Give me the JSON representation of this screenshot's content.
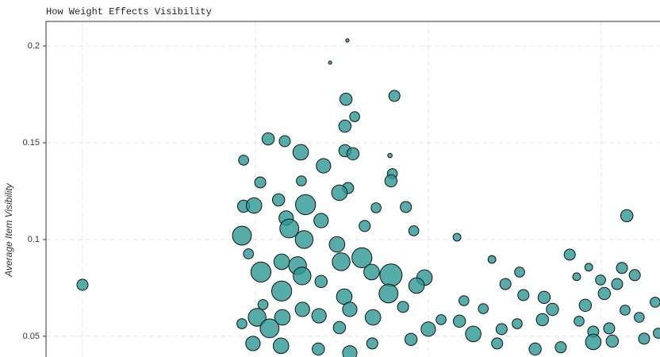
{
  "chart_data": {
    "type": "scatter",
    "title": "How Weight Effects Visibility",
    "ylabel": "Average Item Visibility",
    "color": "#2a9792",
    "grid": true,
    "xlim": [
      39.45,
      217.0
    ],
    "xticks": [
      50,
      100,
      150,
      200
    ],
    "ylim": [
      0.0393,
      0.2127
    ],
    "yticks": [
      0.2,
      0.15,
      0.1,
      0.05
    ],
    "x": [
      50.0,
      126.6,
      121.6,
      126.2,
      140.2,
      128.7,
      125.9,
      103.7,
      108.5,
      113.1,
      125.9,
      128.2,
      96.6,
      119.7,
      138.9,
      139.6,
      139.2,
      101.4,
      113.3,
      126.8,
      124.3,
      106.7,
      114.5,
      96.6,
      99.6,
      134.9,
      143.5,
      207.4,
      108.9,
      119.0,
      131.6,
      109.8,
      145.8,
      96.1,
      114.1,
      158.3,
      123.6,
      98.0,
      107.6,
      130.8,
      112.2,
      124.8,
      168.4,
      190.9,
      101.6,
      113.5,
      139.2,
      148.9,
      133.6,
      196.4,
      206.0,
      209.7,
      176.4,
      172.3,
      146.6,
      192.9,
      199.8,
      204.6,
      107.6,
      119.0,
      125.7,
      138.5,
      177.5,
      183.5,
      200.9,
      160.3,
      195.4,
      215.6,
      102.2,
      113.6,
      127.3,
      142.7,
      165.9,
      185.9,
      206.9,
      100.5,
      107.8,
      118.4,
      134.0,
      153.7,
      159.0,
      175.7,
      183.0,
      193.6,
      211.0,
      96.1,
      104.1,
      124.3,
      150.0,
      163.0,
      171.2,
      197.7,
      202.3,
      99.3,
      107.4,
      118.2,
      127.3,
      133.8,
      145.0,
      169.9,
      180.9,
      188.3,
      197.7,
      203.2,
      212.4,
      216.5
    ],
    "y": [
      0.0766,
      0.2029,
      0.1914,
      0.1725,
      0.1742,
      0.1635,
      0.1586,
      0.152,
      0.1508,
      0.1451,
      0.1459,
      0.1443,
      0.141,
      0.1381,
      0.1434,
      0.134,
      0.1303,
      0.1295,
      0.1303,
      0.1266,
      0.1242,
      0.1205,
      0.118,
      0.1172,
      0.1176,
      0.1164,
      0.1168,
      0.1123,
      0.1111,
      0.1098,
      0.107,
      0.1057,
      0.1045,
      0.102,
      0.1,
      0.1012,
      0.0975,
      0.0926,
      0.0885,
      0.0906,
      0.0865,
      0.0885,
      0.0897,
      0.0922,
      0.0832,
      0.0812,
      0.0816,
      0.0803,
      0.0832,
      0.0857,
      0.0853,
      0.0816,
      0.0832,
      0.077,
      0.0762,
      0.0808,
      0.0791,
      0.077,
      0.0734,
      0.0783,
      0.0705,
      0.0721,
      0.0713,
      0.0701,
      0.0721,
      0.0684,
      0.066,
      0.0676,
      0.0664,
      0.0639,
      0.0639,
      0.0652,
      0.0643,
      0.0639,
      0.0635,
      0.0598,
      0.0598,
      0.0606,
      0.0598,
      0.0586,
      0.0578,
      0.0565,
      0.0586,
      0.0578,
      0.0598,
      0.0565,
      0.0541,
      0.0545,
      0.0537,
      0.0512,
      0.0537,
      0.0524,
      0.0541,
      0.0463,
      0.0451,
      0.0434,
      0.0414,
      0.0463,
      0.0484,
      0.0463,
      0.0434,
      0.0443,
      0.0471,
      0.0475,
      0.0488,
      0.0516
    ],
    "size": [
      10,
      3,
      3,
      11,
      10,
      9,
      11,
      11,
      10,
      14,
      11,
      11,
      9,
      13,
      4,
      9,
      11,
      10,
      9,
      10,
      14,
      11,
      18,
      11,
      14,
      9,
      10,
      11,
      13,
      13,
      10,
      17,
      9,
      17,
      16,
      7,
      14,
      9,
      14,
      18,
      16,
      16,
      7,
      10,
      18,
      16,
      20,
      14,
      14,
      7,
      10,
      10,
      9,
      10,
      14,
      7,
      9,
      10,
      18,
      11,
      14,
      17,
      10,
      11,
      11,
      9,
      11,
      9,
      9,
      13,
      13,
      10,
      9,
      11,
      9,
      16,
      14,
      13,
      14,
      9,
      11,
      9,
      11,
      9,
      9,
      9,
      17,
      11,
      13,
      14,
      10,
      10,
      10,
      13,
      14,
      11,
      13,
      10,
      11,
      10,
      11,
      10,
      14,
      11,
      10,
      9
    ]
  }
}
